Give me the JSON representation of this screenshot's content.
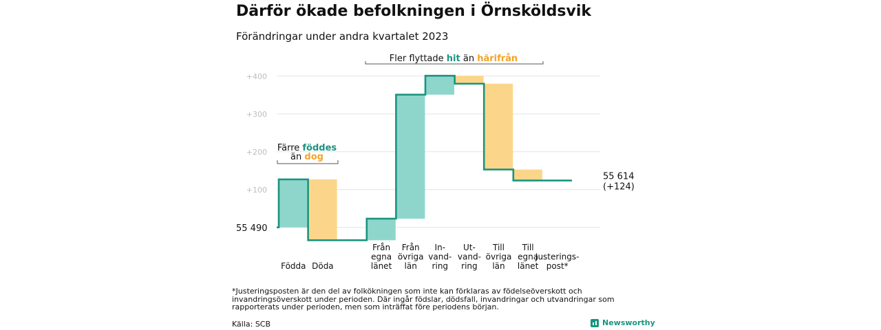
{
  "title": "Därför ökade befolkningen i Örnsköldsvik",
  "subtitle": "Förändringar under andra kvartalet 2023",
  "colors": {
    "inflow": "#8ed6cc",
    "outflow": "#fbd68a",
    "line": "#1a9480",
    "accent_inflow": "#1a9480",
    "accent_outflow": "#f4a32a",
    "grid": "#e3e3e3"
  },
  "chart_data": {
    "type": "waterfall",
    "y_ticks": [
      {
        "value": 100,
        "label": "+100"
      },
      {
        "value": 200,
        "label": "+200"
      },
      {
        "value": 300,
        "label": "+300"
      },
      {
        "value": 400,
        "label": "+400"
      }
    ],
    "ylim": [
      -35,
      425
    ],
    "grid": true,
    "start_label": "55  490",
    "end_label": [
      "55 614",
      "(+124)"
    ],
    "steps": [
      {
        "label": [
          "Födda"
        ],
        "change": 127,
        "kind": "inflow"
      },
      {
        "label": [
          "Döda"
        ],
        "change": -161,
        "kind": "outflow"
      },
      {
        "label": [],
        "change": 0,
        "kind": "none"
      },
      {
        "label": [
          "Från",
          "egna",
          "länet"
        ],
        "change": 57,
        "kind": "inflow"
      },
      {
        "label": [
          "Från",
          "övriga",
          "län"
        ],
        "change": 328,
        "kind": "inflow"
      },
      {
        "label": [
          "In-",
          "vand-",
          "ring"
        ],
        "change": 50,
        "kind": "inflow"
      },
      {
        "label": [
          "Ut-",
          "vand-",
          "ring"
        ],
        "change": -21,
        "kind": "outflow"
      },
      {
        "label": [
          "Till",
          "övriga",
          "län"
        ],
        "change": -227,
        "kind": "outflow"
      },
      {
        "label": [
          "Till",
          "egna",
          "länet"
        ],
        "change": -29,
        "kind": "outflow"
      },
      {
        "label": [
          "Justerings-",
          "post*"
        ],
        "change": 0,
        "kind": "none"
      }
    ],
    "annotations": [
      {
        "segments": [
          {
            "text": "Färre ",
            "style": "plain"
          },
          {
            "text": "föddes",
            "style": "inflow"
          }
        ],
        "line2": [
          {
            "text": "än ",
            "style": "plain"
          },
          {
            "text": "dog",
            "style": "outflow"
          }
        ]
      },
      {
        "segments": [
          {
            "text": "Fler flyttade ",
            "style": "plain"
          },
          {
            "text": "hit",
            "style": "inflow"
          },
          {
            "text": " än ",
            "style": "plain"
          },
          {
            "text": "härifrån",
            "style": "outflow"
          }
        ]
      }
    ]
  },
  "footnote": "*Justeringsposten är den del av folkökningen som inte kan förklaras av födelseöverskott och invandringsöverskott under perioden. Där ingår födslar, dödsfall, invandringar och utvandringar som rapporterats under perioden, men som inträffat före periodens början.",
  "source": "Källa: SCB",
  "brand": "Newsworthy"
}
